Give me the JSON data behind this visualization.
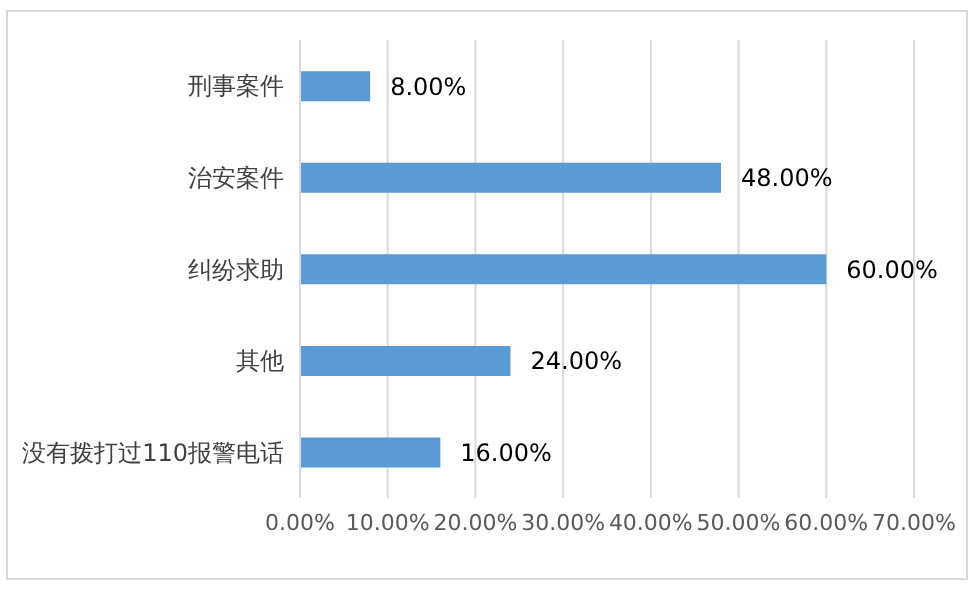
{
  "chart_data": {
    "type": "bar",
    "orientation": "horizontal",
    "categories": [
      "刑事案件",
      "治安案件",
      "纠纷求助",
      "其他",
      "没有拨打过110报警电话"
    ],
    "values": [
      8,
      48,
      60,
      24,
      16
    ],
    "color": "#5b9bd5",
    "value_labels": [
      "8.00%",
      "48.00%",
      "60.00%",
      "24.00%",
      "16.00%"
    ],
    "xlim": [
      0,
      70
    ],
    "xticks": [
      {
        "value": 0,
        "label": "0.00%"
      },
      {
        "value": 10,
        "label": "10.00%"
      },
      {
        "value": 20,
        "label": "20.00%"
      },
      {
        "value": 30,
        "label": "30.00%"
      },
      {
        "value": 40,
        "label": "40.00%"
      },
      {
        "value": 50,
        "label": "50.00%"
      },
      {
        "value": 60,
        "label": "60.00%"
      },
      {
        "value": 70,
        "label": "70.00%"
      }
    ],
    "grid": "x"
  }
}
